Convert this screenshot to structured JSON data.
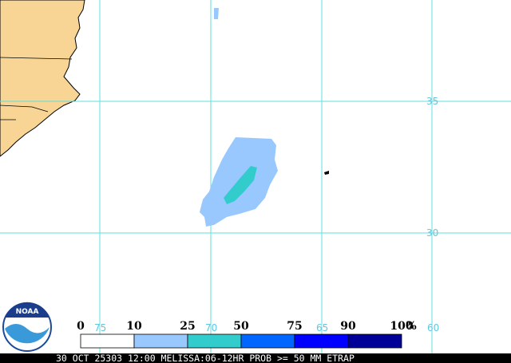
{
  "map": {
    "lat_labels": [
      "35",
      "30"
    ],
    "lon_labels": [
      "75",
      "70",
      "65",
      "60"
    ],
    "logo": "NOAA",
    "legend": {
      "labels": [
        "0",
        "10",
        "25",
        "50",
        "75",
        "90",
        "100"
      ],
      "unit": "%",
      "colors": [
        "#ffffff",
        "#99c8ff",
        "#33cccc",
        "#0066ff",
        "#0000ff",
        "#000099"
      ]
    },
    "caption": "30 OCT 25303 12:00 MELISSA:06-12HR PROB >= 50 MM ETRAP"
  }
}
